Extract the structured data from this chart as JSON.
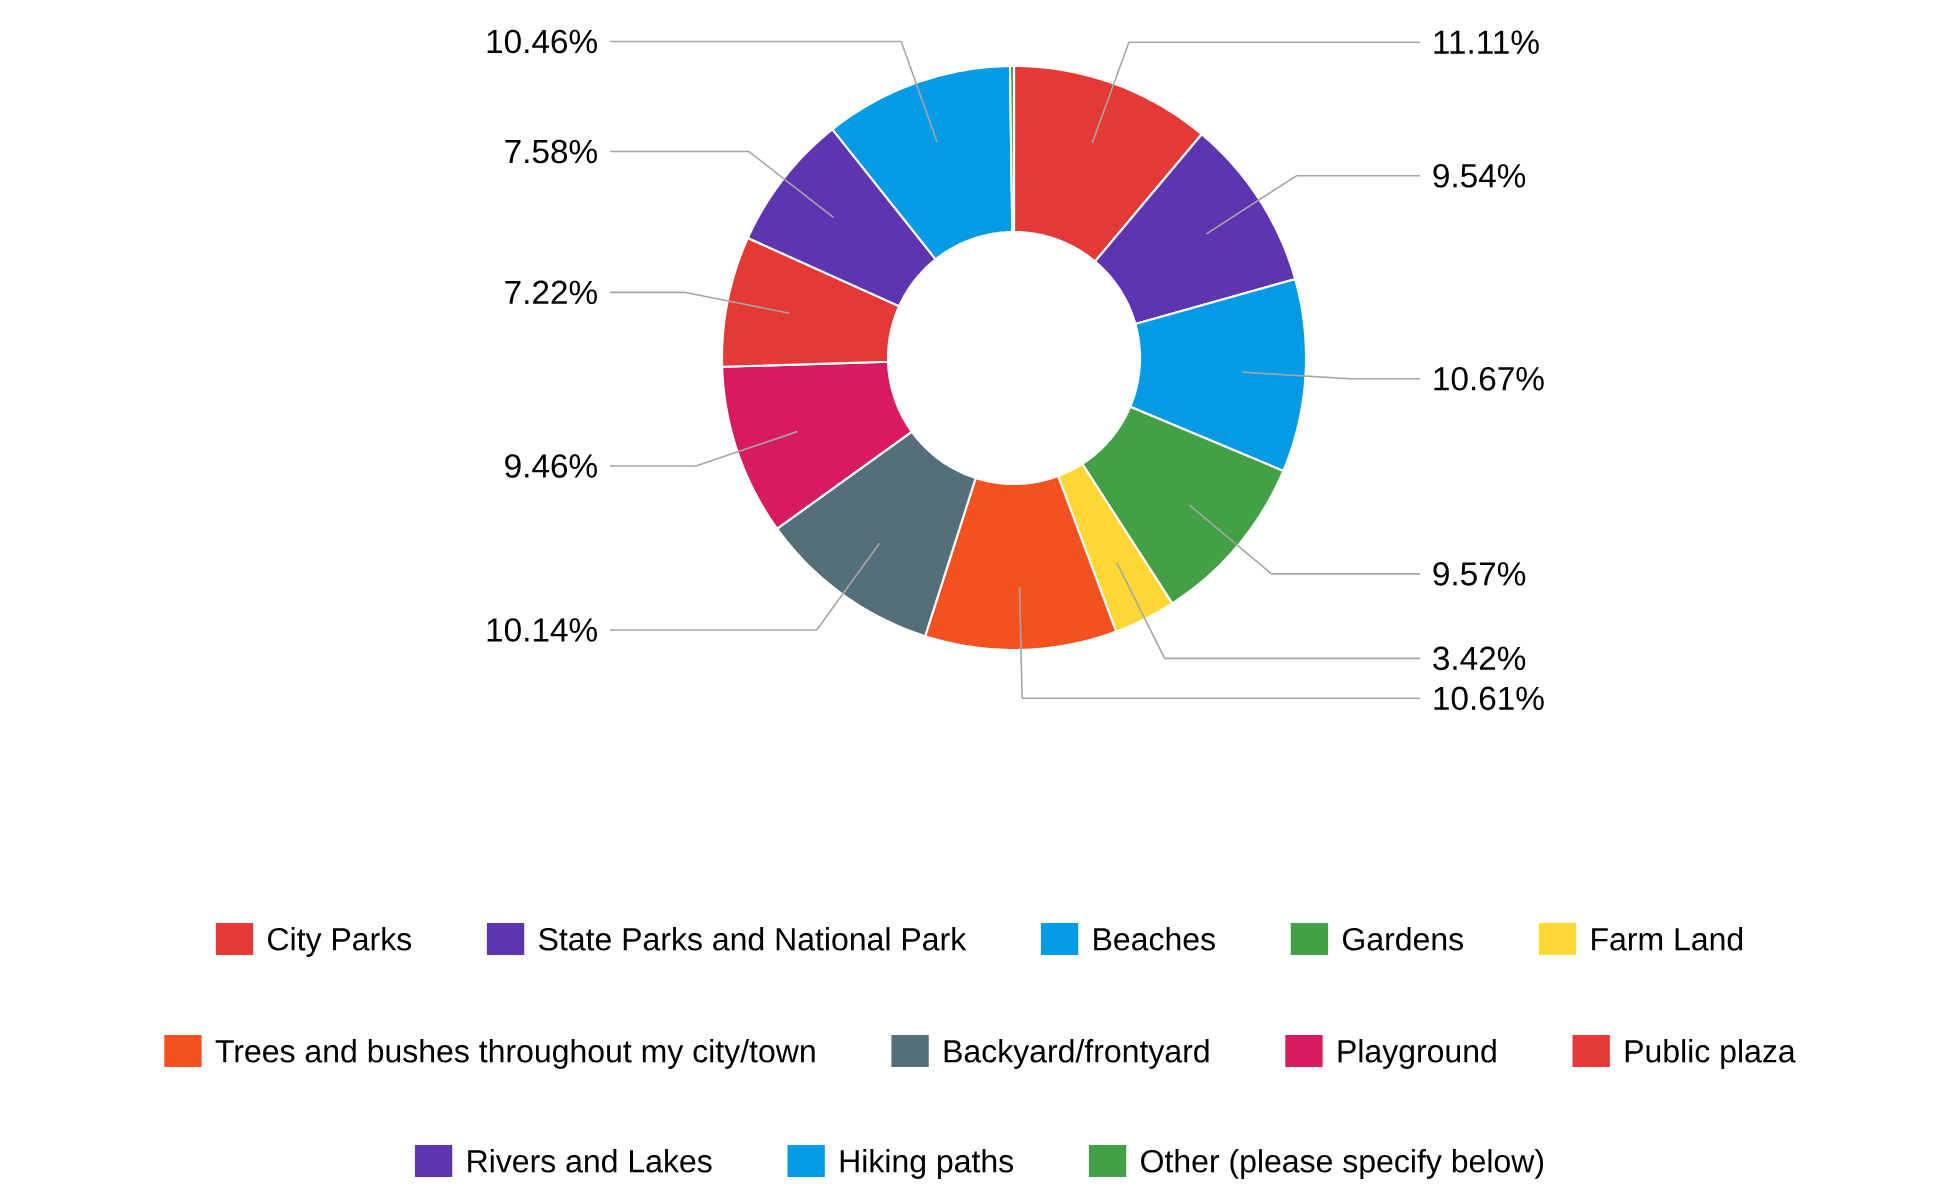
{
  "chart_data": {
    "type": "donut",
    "categories": [
      "City Parks",
      "State Parks and National Park",
      "Beaches",
      "Gardens",
      "Farm Land",
      "Trees and bushes throughout my city/town",
      "Backyard/frontyard",
      "Playground",
      "Public plaza",
      "Rivers and Lakes",
      "Hiking paths",
      "Other (please specify below)"
    ],
    "values": [
      11.11,
      9.54,
      10.67,
      9.57,
      3.42,
      10.61,
      10.14,
      9.46,
      7.22,
      7.58,
      10.46,
      0.22
    ],
    "value_labels": [
      "11.11%",
      "9.54%",
      "10.67%",
      "9.57%",
      "3.42%",
      "10.61%",
      "10.14%",
      "9.46%",
      "7.22%",
      "7.58%",
      "10.46%",
      null
    ],
    "colors": [
      "#e53935",
      "#5e35b1",
      "#039be5",
      "#43a047",
      "#fdd835",
      "#f4511e",
      "#546e7a",
      "#d81b60",
      "#e53935",
      "#5e35b1",
      "#039be5",
      "#43a047"
    ],
    "legend": "bottom"
  }
}
